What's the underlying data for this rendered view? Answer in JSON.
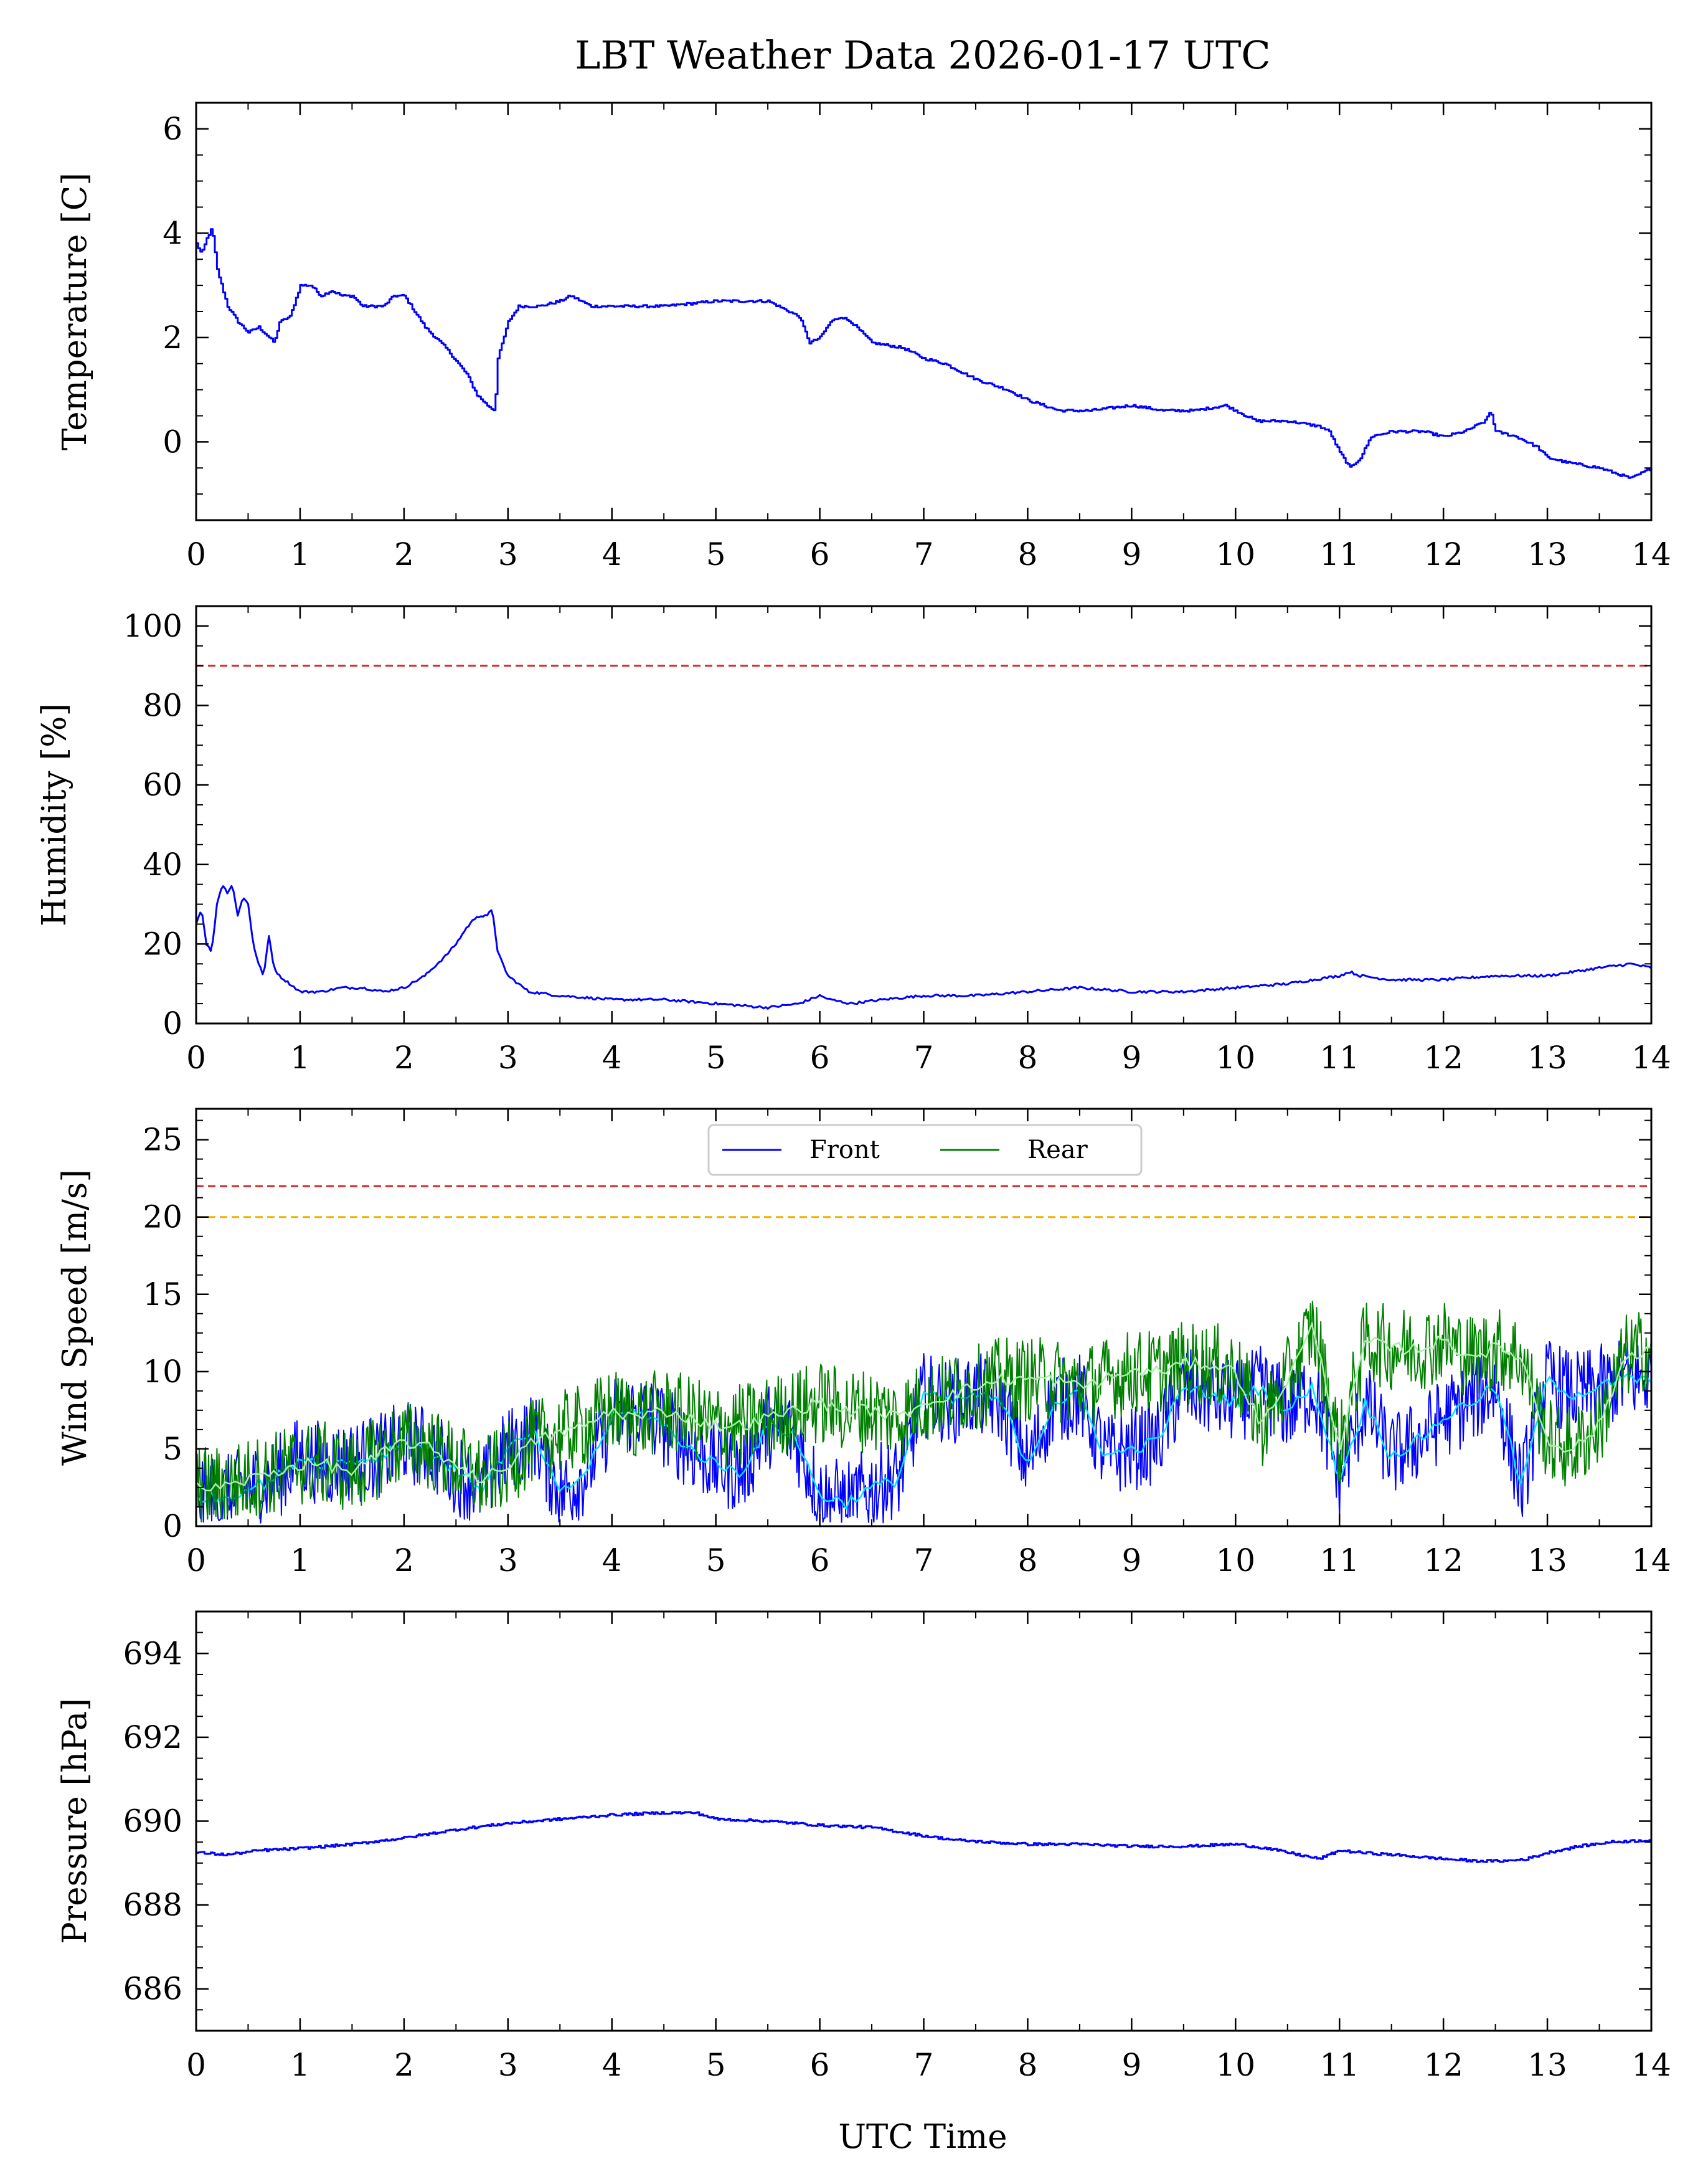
{
  "title": "LBT Weather Data 2026-01-17 UTC",
  "xlabel": "UTC Time",
  "colors": {
    "front": "#0000ff",
    "rear": "#008000",
    "front_smooth": "#00e5ff",
    "rear_smooth": "#a8f0a8",
    "limit_red": "#d62728",
    "limit_orange": "#f0b400"
  },
  "chart_data": [
    {
      "id": "temperature",
      "type": "line",
      "ylabel": "Temperature [C]",
      "xlim": [
        0,
        14
      ],
      "ylim": [
        -1.5,
        6.5
      ],
      "xticks": [
        0,
        1,
        2,
        3,
        4,
        5,
        6,
        7,
        8,
        9,
        10,
        11,
        12,
        13,
        14
      ],
      "yticks": [
        0,
        2,
        4,
        6
      ],
      "step": true,
      "series": [
        {
          "name": "Temperature",
          "color": "#0000ff",
          "x": [
            0,
            0.05,
            0.1,
            0.15,
            0.2,
            0.3,
            0.4,
            0.5,
            0.6,
            0.7,
            0.75,
            0.8,
            0.9,
            1.0,
            1.1,
            1.2,
            1.3,
            1.4,
            1.5,
            1.6,
            1.8,
            1.9,
            2.0,
            2.1,
            2.2,
            2.4,
            2.6,
            2.7,
            2.8,
            2.87,
            2.9,
            3.0,
            3.1,
            3.3,
            3.5,
            3.6,
            3.8,
            4.0,
            4.2,
            4.5,
            5.0,
            5.2,
            5.5,
            5.8,
            5.9,
            6.0,
            6.1,
            6.2,
            6.3,
            6.5,
            6.8,
            7.0,
            7.2,
            7.5,
            7.8,
            8.0,
            8.3,
            8.6,
            9.0,
            9.3,
            9.6,
            9.9,
            10.0,
            10.2,
            10.5,
            10.8,
            10.9,
            11.0,
            11.1,
            11.2,
            11.3,
            11.5,
            11.8,
            12.0,
            12.2,
            12.4,
            12.45,
            12.5,
            12.7,
            12.9,
            13.0,
            13.2,
            13.5,
            13.8,
            14.0
          ],
          "y": [
            3.8,
            3.6,
            3.9,
            4.1,
            3.3,
            2.6,
            2.3,
            2.1,
            2.2,
            2.0,
            1.9,
            2.3,
            2.4,
            3.0,
            3.0,
            2.8,
            2.9,
            2.8,
            2.8,
            2.6,
            2.6,
            2.8,
            2.8,
            2.5,
            2.2,
            1.8,
            1.3,
            0.9,
            0.7,
            0.6,
            1.6,
            2.3,
            2.6,
            2.6,
            2.7,
            2.8,
            2.6,
            2.6,
            2.6,
            2.6,
            2.7,
            2.7,
            2.7,
            2.4,
            1.9,
            2.0,
            2.3,
            2.4,
            2.3,
            1.9,
            1.8,
            1.6,
            1.5,
            1.2,
            1.0,
            0.8,
            0.6,
            0.6,
            0.7,
            0.6,
            0.6,
            0.7,
            0.6,
            0.4,
            0.4,
            0.3,
            0.2,
            -0.2,
            -0.5,
            -0.3,
            0.1,
            0.2,
            0.2,
            0.1,
            0.2,
            0.4,
            0.6,
            0.2,
            0.1,
            -0.1,
            -0.3,
            -0.4,
            -0.5,
            -0.7,
            -0.5
          ]
        }
      ]
    },
    {
      "id": "humidity",
      "type": "line",
      "ylabel": "Humidity [%]",
      "xlim": [
        0,
        14
      ],
      "ylim": [
        0,
        105
      ],
      "xticks": [
        0,
        1,
        2,
        3,
        4,
        5,
        6,
        7,
        8,
        9,
        10,
        11,
        12,
        13,
        14
      ],
      "yticks": [
        0,
        20,
        40,
        60,
        80,
        100
      ],
      "limit": {
        "value": 90,
        "color": "#d62728"
      },
      "series": [
        {
          "name": "Humidity",
          "color": "#0000ff",
          "x": [
            0,
            0.05,
            0.1,
            0.15,
            0.2,
            0.25,
            0.3,
            0.35,
            0.4,
            0.45,
            0.5,
            0.55,
            0.6,
            0.65,
            0.7,
            0.75,
            0.8,
            0.9,
            1.0,
            1.2,
            1.4,
            1.6,
            1.8,
            2.0,
            2.2,
            2.4,
            2.5,
            2.6,
            2.7,
            2.8,
            2.85,
            2.9,
            3.0,
            3.2,
            3.5,
            4.0,
            4.5,
            5.0,
            5.5,
            5.8,
            5.9,
            6.0,
            6.1,
            6.3,
            6.6,
            7.0,
            7.5,
            8.0,
            8.5,
            9.0,
            9.5,
            10.0,
            10.5,
            11.0,
            11.1,
            11.2,
            11.5,
            12.0,
            12.5,
            13.0,
            13.5,
            13.8,
            14.0
          ],
          "y": [
            25,
            29,
            20,
            18,
            30,
            35,
            33,
            35,
            27,
            32,
            30,
            20,
            15,
            12,
            22,
            14,
            12,
            10,
            8,
            8,
            9,
            9,
            8,
            9,
            12,
            17,
            20,
            24,
            27,
            27,
            29,
            18,
            12,
            8,
            7,
            6,
            6,
            5,
            4,
            5,
            6,
            7,
            6,
            5,
            6,
            7,
            7,
            8,
            9,
            8,
            8,
            9,
            10,
            12,
            13,
            12,
            11,
            11,
            12,
            12,
            14,
            15,
            14
          ]
        }
      ]
    },
    {
      "id": "wind",
      "type": "line",
      "ylabel": "Wind Speed [m/s]",
      "xlim": [
        0,
        14
      ],
      "ylim": [
        0,
        27
      ],
      "xticks": [
        0,
        1,
        2,
        3,
        4,
        5,
        6,
        7,
        8,
        9,
        10,
        11,
        12,
        13,
        14
      ],
      "yticks": [
        0,
        5,
        10,
        15,
        20,
        25
      ],
      "limits": [
        {
          "value": 22,
          "color": "#d62728"
        },
        {
          "value": 20,
          "color": "#f0b400"
        }
      ],
      "legend": [
        "Front",
        "Rear"
      ],
      "series": [
        {
          "name": "Front",
          "color": "#0000ff",
          "x": [
            0,
            0.25,
            0.5,
            0.75,
            1.0,
            1.25,
            1.5,
            1.75,
            2.0,
            2.25,
            2.5,
            2.75,
            3.0,
            3.25,
            3.5,
            3.75,
            4.0,
            4.25,
            4.5,
            4.75,
            5.0,
            5.25,
            5.5,
            5.75,
            6.0,
            6.25,
            6.5,
            6.75,
            7.0,
            7.25,
            7.5,
            7.75,
            8.0,
            8.25,
            8.5,
            8.75,
            9.0,
            9.25,
            9.5,
            9.75,
            10.0,
            10.25,
            10.5,
            10.75,
            11.0,
            11.25,
            11.5,
            11.75,
            12.0,
            12.25,
            12.5,
            12.75,
            13.0,
            13.25,
            13.5,
            13.75,
            14.0
          ],
          "y": [
            2.0,
            1.8,
            2.5,
            3.0,
            4.5,
            4.0,
            4.2,
            4.5,
            5.5,
            5.0,
            3.5,
            2.5,
            5.0,
            6.0,
            2.0,
            3.5,
            7.0,
            7.5,
            6.5,
            5.0,
            4.0,
            3.5,
            6.5,
            6.0,
            2.0,
            1.5,
            2.5,
            3.0,
            8.5,
            8.0,
            8.5,
            8.0,
            4.0,
            8.0,
            8.5,
            4.5,
            5.0,
            5.5,
            9.0,
            8.5,
            8.0,
            9.0,
            7.5,
            9.0,
            3.0,
            8.0,
            4.5,
            5.5,
            7.0,
            8.0,
            9.0,
            2.5,
            9.5,
            8.5,
            9.0,
            9.5,
            9.5
          ]
        },
        {
          "name": "Rear",
          "color": "#008000",
          "x": [
            0,
            0.25,
            0.5,
            0.75,
            1.0,
            1.25,
            1.5,
            1.75,
            2.0,
            2.25,
            2.5,
            2.75,
            3.0,
            3.25,
            3.5,
            3.75,
            4.0,
            4.25,
            4.5,
            4.75,
            5.0,
            5.25,
            5.5,
            5.75,
            6.0,
            6.25,
            6.5,
            6.75,
            7.0,
            7.25,
            7.5,
            7.75,
            8.0,
            8.25,
            8.5,
            8.75,
            9.0,
            9.25,
            9.5,
            9.75,
            10.0,
            10.25,
            10.5,
            10.75,
            11.0,
            11.25,
            11.5,
            11.75,
            12.0,
            12.25,
            12.5,
            12.75,
            13.0,
            13.25,
            13.5,
            13.75,
            14.0
          ],
          "y": [
            2.5,
            2.5,
            3.0,
            3.5,
            4.0,
            4.0,
            3.5,
            4.5,
            5.5,
            5.0,
            4.0,
            3.0,
            4.0,
            5.5,
            6.0,
            6.5,
            7.5,
            7.0,
            7.5,
            7.0,
            6.5,
            6.5,
            7.0,
            7.5,
            8.0,
            7.5,
            7.5,
            7.0,
            8.0,
            8.5,
            9.0,
            9.5,
            9.5,
            9.5,
            9.0,
            9.5,
            10.0,
            10.0,
            10.5,
            10.5,
            10.0,
            6.5,
            9.5,
            13.0,
            5.0,
            12.0,
            11.5,
            11.5,
            12.0,
            11.0,
            11.5,
            11.0,
            5.5,
            5.0,
            6.5,
            11.0,
            11.5
          ]
        }
      ]
    },
    {
      "id": "pressure",
      "type": "line",
      "ylabel": "Pressure [hPa]",
      "xlim": [
        0,
        14
      ],
      "ylim": [
        685,
        695
      ],
      "xticks": [
        0,
        1,
        2,
        3,
        4,
        5,
        6,
        7,
        8,
        9,
        10,
        11,
        12,
        13,
        14
      ],
      "yticks": [
        686,
        688,
        690,
        692,
        694
      ],
      "step": true,
      "series": [
        {
          "name": "Pressure",
          "color": "#0000ff",
          "x": [
            0,
            0.3,
            0.6,
            1.0,
            1.5,
            2.0,
            2.5,
            3.0,
            3.5,
            4.0,
            4.5,
            4.8,
            5.0,
            5.5,
            6.0,
            6.5,
            7.0,
            7.3,
            7.6,
            8.0,
            8.5,
            9.0,
            9.5,
            10.0,
            10.3,
            10.6,
            10.8,
            11.0,
            11.2,
            11.5,
            12.0,
            12.3,
            12.6,
            12.8,
            13.0,
            13.3,
            13.6,
            14.0
          ],
          "y": [
            689.25,
            689.2,
            689.3,
            689.35,
            689.45,
            689.6,
            689.8,
            689.95,
            690.05,
            690.15,
            690.2,
            690.2,
            690.05,
            690.0,
            689.9,
            689.85,
            689.65,
            689.55,
            689.5,
            689.45,
            689.45,
            689.4,
            689.4,
            689.45,
            689.35,
            689.2,
            689.1,
            689.3,
            689.25,
            689.2,
            689.1,
            689.05,
            689.05,
            689.1,
            689.25,
            689.4,
            689.5,
            689.55
          ]
        }
      ]
    }
  ]
}
